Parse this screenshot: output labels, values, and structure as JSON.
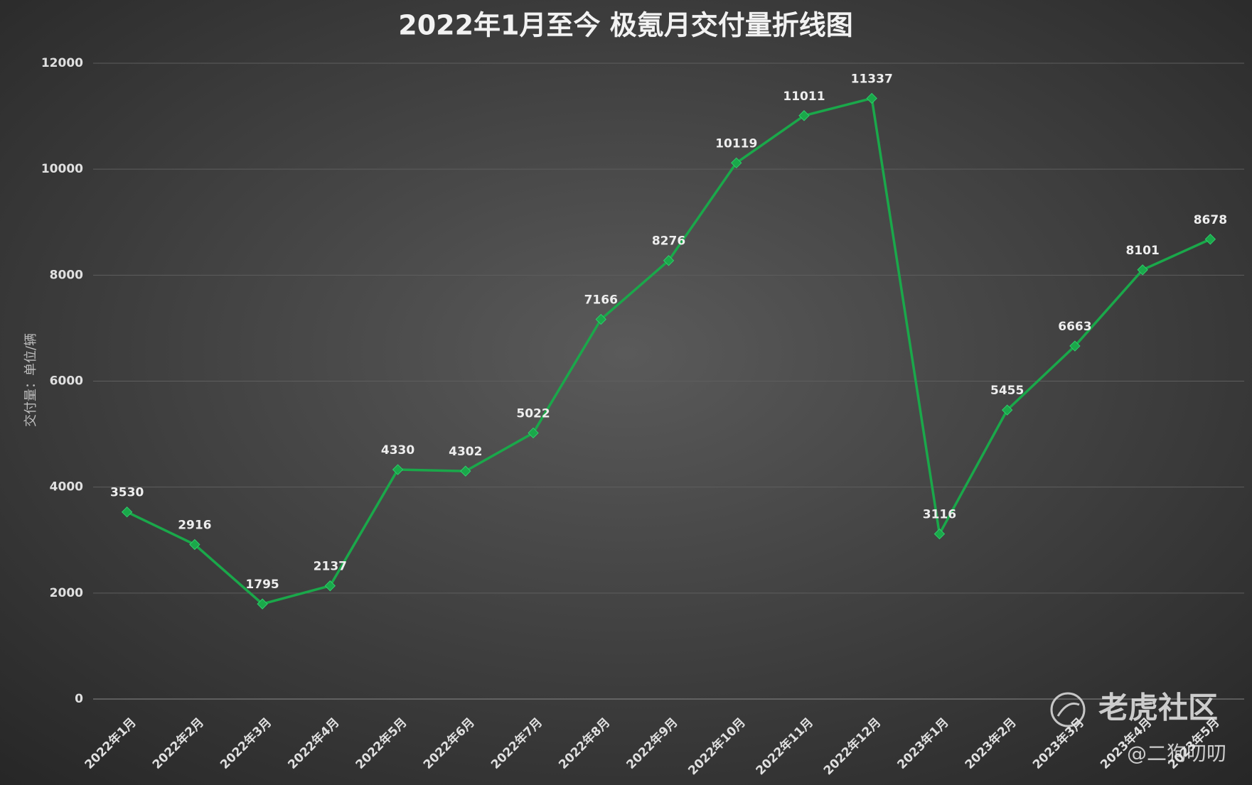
{
  "chart_data": {
    "type": "line",
    "title": "2022年1月至今 极氪月交付量折线图",
    "y_label": "交付量：单位/辆",
    "categories": [
      "2022年1月",
      "2022年2月",
      "2022年3月",
      "2022年4月",
      "2022年5月",
      "2022年6月",
      "2022年7月",
      "2022年8月",
      "2022年9月",
      "2022年10月",
      "2022年11月",
      "2022年12月",
      "2023年1月",
      "2023年2月",
      "2023年3月",
      "2023年4月",
      "2023年5月"
    ],
    "series": [
      {
        "name": "交付量",
        "color": "#1aa84a",
        "values": [
          3530,
          2916,
          1795,
          2137,
          4330,
          4302,
          5022,
          7166,
          8276,
          10119,
          11011,
          11337,
          3116,
          5455,
          6663,
          8101,
          8678
        ]
      }
    ],
    "ylim": [
      0,
      12000
    ],
    "yticks": [
      0,
      2000,
      4000,
      6000,
      8000,
      10000,
      12000
    ],
    "grid": true
  },
  "watermark": {
    "site": "老虎社区",
    "author": "@二狗叨叨"
  }
}
